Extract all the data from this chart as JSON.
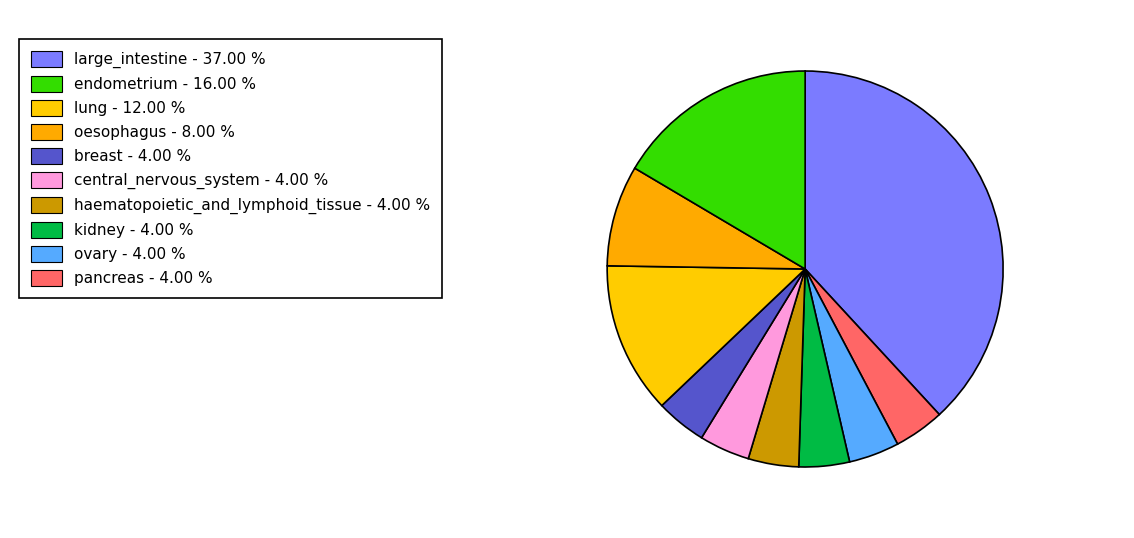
{
  "labels": [
    "large_intestine - 37.00 %",
    "endometrium - 16.00 %",
    "lung - 12.00 %",
    "oesophagus - 8.00 %",
    "breast - 4.00 %",
    "central_nervous_system - 4.00 %",
    "haematopoietic_and_lymphoid_tissue - 4.00 %",
    "kidney - 4.00 %",
    "ovary - 4.00 %",
    "pancreas - 4.00 %"
  ],
  "values": [
    37,
    16,
    12,
    8,
    4,
    4,
    4,
    4,
    4,
    4
  ],
  "colors": [
    "#7B7BFF",
    "#33DD00",
    "#FFCC00",
    "#FFAA00",
    "#5555CC",
    "#FF99DD",
    "#CC9900",
    "#00BB44",
    "#55AAFF",
    "#FF6666"
  ],
  "pie_order": [
    0,
    9,
    8,
    7,
    6,
    5,
    4,
    2,
    3,
    1
  ],
  "figsize": [
    11.34,
    5.38
  ],
  "dpi": 100
}
